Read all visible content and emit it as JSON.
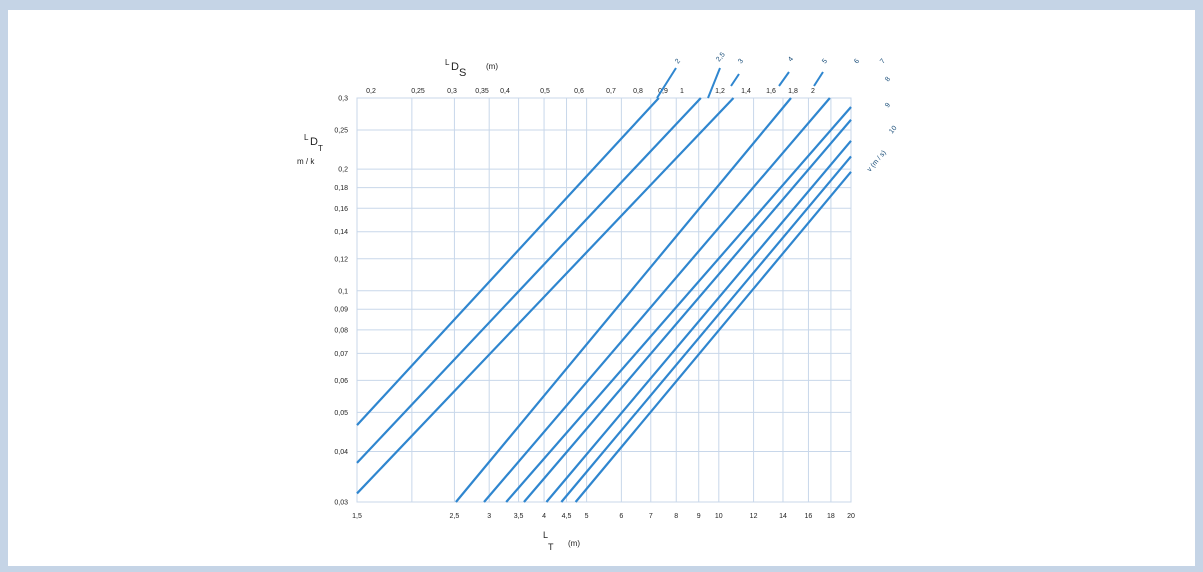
{
  "chart_data": {
    "type": "line",
    "x_scale": "log",
    "y_scale": "log",
    "grid": true,
    "x_axis": {
      "ticks": [
        1.5,
        2.5,
        3,
        3.5,
        4,
        4.5,
        5,
        6,
        7,
        8,
        9,
        10,
        12,
        14,
        16,
        18,
        20
      ],
      "tick_labels": [
        "1,5",
        "2,5",
        "3",
        "3,5",
        "4",
        "4,5",
        "5",
        "6",
        "7",
        "8",
        "9",
        "10",
        "12",
        "14",
        "16",
        "18",
        "20"
      ],
      "extra_gridlines": [
        2
      ],
      "range": [
        1.5,
        20
      ],
      "label_main": "L",
      "label_sub": "T",
      "label_unit": "(m)"
    },
    "y_axis": {
      "ticks": [
        0.03,
        0.04,
        0.05,
        0.06,
        0.07,
        0.08,
        0.09,
        0.1,
        0.12,
        0.14,
        0.16,
        0.18,
        0.2,
        0.25,
        0.3
      ],
      "tick_labels": [
        "0,03",
        "0,04",
        "0,05",
        "0,06",
        "0,07",
        "0,08",
        "0,09",
        "0,1",
        "0,12",
        "0,14",
        "0,16",
        "0,18",
        "0,2",
        "0,25",
        "0,3"
      ],
      "range": [
        0.03,
        0.3
      ],
      "label_main": "L",
      "label_mid": "D",
      "label_sub": "T",
      "label_unit": "m / k"
    },
    "top_axis": {
      "tick_labels": [
        "0,2",
        "0,25",
        "0,3",
        "0,35",
        "0,4",
        "0,5",
        "0,6",
        "0,7",
        "0,8",
        "0,9",
        "1",
        "1,2",
        "1,4",
        "1,6",
        "1,8",
        "2"
      ],
      "label_main": "L",
      "label_mid": "D",
      "label_sub": "S",
      "label_unit": "(m)"
    },
    "series_label": "v",
    "series_unit": "(m / s)",
    "series": [
      {
        "name": "2",
        "points": [
          [
            1.5,
            0.0465
          ],
          [
            7.3,
            0.3
          ]
        ]
      },
      {
        "name": "2,5",
        "points": [
          [
            1.5,
            0.0375
          ],
          [
            9.1,
            0.3
          ]
        ]
      },
      {
        "name": "3",
        "points": [
          [
            1.5,
            0.0315
          ],
          [
            10.8,
            0.3
          ]
        ]
      },
      {
        "name": "4",
        "points": [
          [
            2.52,
            0.03
          ],
          [
            14.6,
            0.3
          ]
        ]
      },
      {
        "name": "5",
        "points": [
          [
            2.92,
            0.03
          ],
          [
            17.9,
            0.3
          ]
        ]
      },
      {
        "name": "6",
        "points": [
          [
            3.28,
            0.03
          ],
          [
            20,
            0.285
          ]
        ]
      },
      {
        "name": "7",
        "points": [
          [
            3.6,
            0.03
          ],
          [
            20,
            0.265
          ]
        ]
      },
      {
        "name": "8",
        "points": [
          [
            4.05,
            0.03
          ],
          [
            20,
            0.235
          ]
        ]
      },
      {
        "name": "9",
        "points": [
          [
            4.38,
            0.03
          ],
          [
            20,
            0.215
          ]
        ]
      },
      {
        "name": "10",
        "points": [
          [
            4.72,
            0.03
          ],
          [
            20,
            0.197
          ]
        ]
      }
    ],
    "line_color": "#2f86cf",
    "grid_color": "#c8d7ea"
  }
}
